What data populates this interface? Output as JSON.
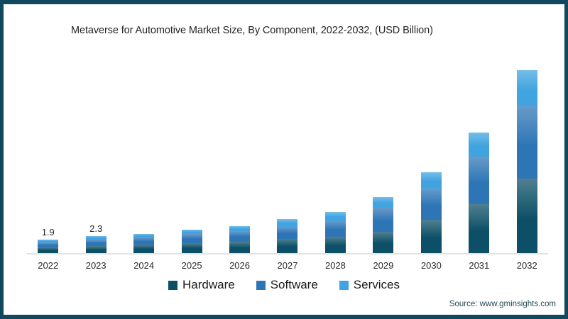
{
  "title": "Metaverse for Automotive Market Size, By Component, 2022-2032, (USD Billion)",
  "source": "Source: www.gminsights.com",
  "colors": {
    "frame": "#10485f",
    "hardware": "#0c4f66",
    "software": "#2e75b6",
    "services": "#41a4e0",
    "axis": "#e2e2e2",
    "text": "#262626"
  },
  "chart_data": {
    "type": "bar",
    "stacked": true,
    "title": "Metaverse for Automotive Market Size, By Component, 2022-2032, (USD Billion)",
    "units": "USD Billion",
    "xlabel": "",
    "ylabel": "",
    "grid": false,
    "y_axis_visible": false,
    "legend_position": "bottom-center",
    "categories": [
      "2022",
      "2023",
      "2024",
      "2025",
      "2026",
      "2027",
      "2028",
      "2029",
      "2030",
      "2031",
      "2032"
    ],
    "series": [
      {
        "name": "Hardware",
        "color": "#0c4f66",
        "values": [
          0.8,
          1.0,
          1.15,
          1.4,
          1.6,
          2.0,
          2.3,
          3.0,
          4.7,
          6.9,
          10.5
        ]
      },
      {
        "name": "Software",
        "color": "#2e75b6",
        "values": [
          0.7,
          0.85,
          0.95,
          1.3,
          1.5,
          1.7,
          2.2,
          3.4,
          4.4,
          6.7,
          10.3
        ]
      },
      {
        "name": "Services",
        "color": "#41a4e0",
        "values": [
          0.4,
          0.45,
          0.5,
          0.6,
          0.7,
          1.1,
          1.3,
          1.5,
          2.3,
          3.4,
          5.0
        ]
      }
    ],
    "totals": [
      1.9,
      2.3,
      2.6,
      3.3,
      3.8,
      4.8,
      5.8,
      7.9,
      11.4,
      17.0,
      25.8
    ],
    "data_labels": [
      "1.9",
      "2.3",
      "",
      "",
      "",
      "",
      "",
      "",
      "",
      "",
      ""
    ]
  }
}
